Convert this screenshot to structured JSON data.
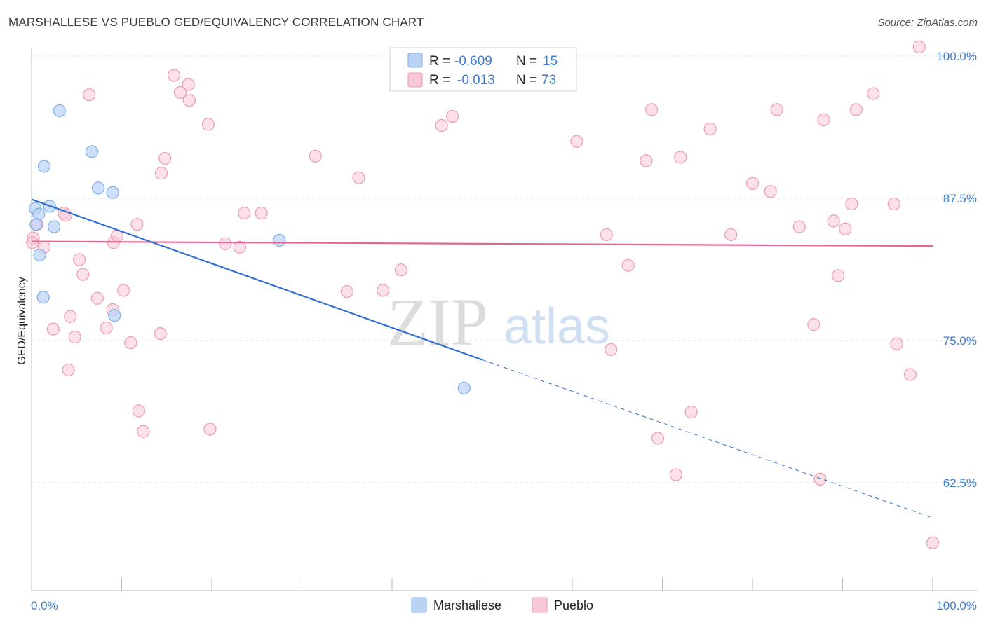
{
  "title": "MARSHALLESE VS PUEBLO GED/EQUIVALENCY CORRELATION CHART",
  "source": "Source: ZipAtlas.com",
  "watermark": {
    "part1": "ZIP",
    "part2": "atlas"
  },
  "legend": {
    "rows": [
      {
        "r_label": "R =",
        "r_value": "-0.609",
        "n_label": "N =",
        "n_value": "15"
      },
      {
        "r_label": "R =",
        "r_value": "-0.013",
        "n_label": "N =",
        "n_value": "73"
      }
    ]
  },
  "bottom_legend": [
    "Marshallese",
    "Pueblo"
  ],
  "colors": {
    "marshallese_fill": "#b9d3f5",
    "marshallese_stroke": "#7faee6",
    "marshallese_line": "#2f6fcf",
    "pueblo_fill": "#f9c8d6",
    "pueblo_stroke": "#ee9ab4",
    "pueblo_line": "#e4668f",
    "tick_text": "#3d7fd6",
    "grid": "#e2e2e2"
  },
  "chart_data": {
    "type": "scatter",
    "title": "MARSHALLESE VS PUEBLO GED/EQUIVALENCY CORRELATION CHART",
    "xlabel": "",
    "ylabel": "GED/Equivalency",
    "xlim": [
      0,
      100
    ],
    "ylim": [
      53,
      100
    ],
    "x_tick_labels": [
      "0.0%",
      "100.0%"
    ],
    "y_ticks": [
      62.5,
      75.0,
      87.5,
      100.0
    ],
    "y_tick_labels": [
      "62.5%",
      "75.0%",
      "87.5%",
      "100.0%"
    ],
    "series": [
      {
        "name": "Marshallese",
        "points": [
          [
            0.4,
            86.6
          ],
          [
            0.8,
            86.1
          ],
          [
            0.5,
            85.2
          ],
          [
            0.9,
            82.5
          ],
          [
            1.3,
            78.8
          ],
          [
            1.4,
            90.3
          ],
          [
            2.0,
            86.8
          ],
          [
            2.5,
            85.0
          ],
          [
            3.1,
            95.2
          ],
          [
            6.7,
            91.6
          ],
          [
            7.4,
            88.4
          ],
          [
            9.0,
            88.0
          ],
          [
            9.2,
            77.2
          ],
          [
            27.5,
            83.8
          ],
          [
            48.0,
            70.8
          ]
        ],
        "trend": {
          "x0": 0,
          "y0": 87.4,
          "x1_solid": 50,
          "y1_solid": 73.3,
          "x1_dashed": 100,
          "y1_dashed": 59.4
        }
      },
      {
        "name": "Pueblo",
        "points": [
          [
            0.2,
            84.0
          ],
          [
            0.6,
            85.2
          ],
          [
            1.4,
            83.2
          ],
          [
            2.4,
            76.0
          ],
          [
            3.6,
            86.2
          ],
          [
            3.8,
            86.0
          ],
          [
            4.1,
            72.4
          ],
          [
            4.3,
            77.1
          ],
          [
            4.8,
            75.3
          ],
          [
            5.3,
            82.1
          ],
          [
            5.7,
            80.8
          ],
          [
            6.4,
            96.6
          ],
          [
            7.3,
            78.7
          ],
          [
            8.3,
            76.1
          ],
          [
            9.0,
            77.7
          ],
          [
            9.1,
            83.6
          ],
          [
            9.5,
            84.2
          ],
          [
            10.2,
            79.4
          ],
          [
            11.0,
            74.8
          ],
          [
            11.7,
            85.2
          ],
          [
            11.9,
            68.8
          ],
          [
            12.4,
            67.0
          ],
          [
            14.3,
            75.6
          ],
          [
            14.4,
            89.7
          ],
          [
            14.8,
            91.0
          ],
          [
            15.8,
            98.3
          ],
          [
            16.5,
            96.8
          ],
          [
            17.4,
            97.5
          ],
          [
            17.5,
            96.1
          ],
          [
            19.6,
            94.0
          ],
          [
            19.8,
            67.2
          ],
          [
            21.5,
            83.5
          ],
          [
            23.1,
            83.2
          ],
          [
            23.6,
            86.2
          ],
          [
            25.5,
            86.2
          ],
          [
            31.5,
            91.2
          ],
          [
            35.0,
            79.3
          ],
          [
            36.3,
            89.3
          ],
          [
            39.0,
            79.4
          ],
          [
            41.0,
            81.2
          ],
          [
            45.5,
            93.9
          ],
          [
            46.7,
            94.7
          ],
          [
            60.5,
            92.5
          ],
          [
            63.8,
            84.3
          ],
          [
            64.3,
            74.2
          ],
          [
            66.2,
            81.6
          ],
          [
            68.2,
            90.8
          ],
          [
            68.8,
            95.3
          ],
          [
            69.5,
            66.4
          ],
          [
            71.5,
            63.2
          ],
          [
            72.0,
            91.1
          ],
          [
            73.2,
            68.7
          ],
          [
            75.3,
            93.6
          ],
          [
            77.6,
            84.3
          ],
          [
            80.0,
            88.8
          ],
          [
            82.0,
            88.1
          ],
          [
            82.7,
            95.3
          ],
          [
            85.2,
            85.0
          ],
          [
            86.8,
            76.4
          ],
          [
            87.5,
            62.8
          ],
          [
            87.9,
            94.4
          ],
          [
            89.0,
            85.5
          ],
          [
            89.5,
            80.7
          ],
          [
            90.3,
            84.8
          ],
          [
            91.0,
            87.0
          ],
          [
            91.5,
            95.3
          ],
          [
            93.4,
            96.7
          ],
          [
            95.7,
            87.0
          ],
          [
            96.0,
            74.7
          ],
          [
            97.5,
            72.0
          ],
          [
            98.5,
            100.8
          ],
          [
            100.0,
            57.2
          ],
          [
            0.1,
            83.6
          ]
        ],
        "trend": {
          "x0": 0,
          "y0": 83.7,
          "x1": 100,
          "y1": 83.3
        }
      }
    ]
  }
}
